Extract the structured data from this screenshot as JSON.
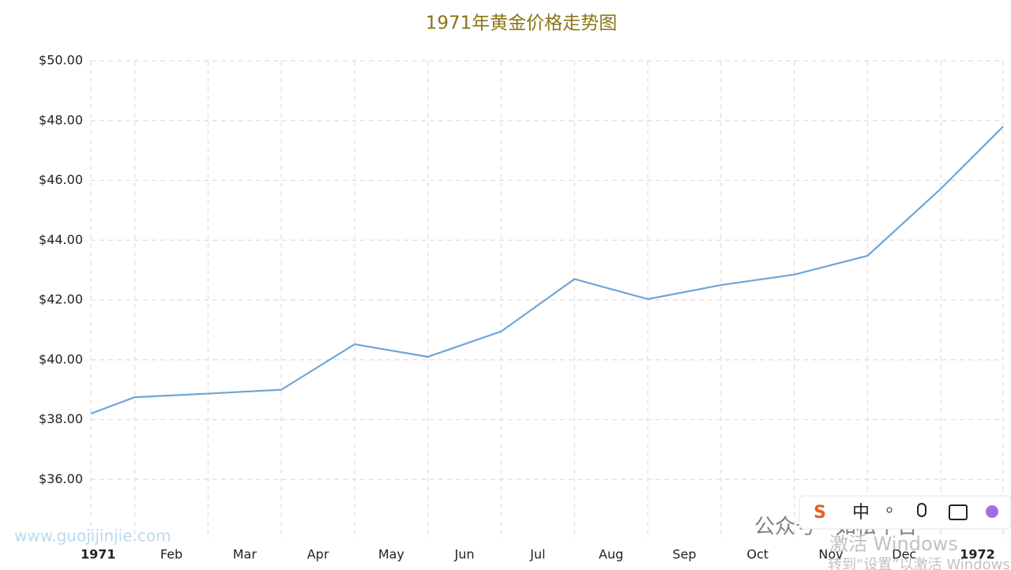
{
  "chart_data": {
    "type": "line",
    "title": "1971年黄金价格走势图",
    "x": [
      -0.1,
      0.5,
      1.5,
      2.5,
      3.5,
      4.5,
      5.5,
      6.5,
      7.5,
      8.5,
      9.5,
      10.5,
      11.5,
      12.35
    ],
    "series": [
      {
        "color": "#6fa6d6",
        "values": [
          38.2,
          38.75,
          38.87,
          39.0,
          40.52,
          40.1,
          40.95,
          42.7,
          42.03,
          42.5,
          42.85,
          43.48,
          45.72,
          47.8
        ]
      }
    ],
    "xlim": [
      -0.1,
      12.35
    ],
    "xticks": [
      {
        "value": 0,
        "label": "1971"
      },
      {
        "value": 1,
        "label": "Feb"
      },
      {
        "value": 2,
        "label": "Mar"
      },
      {
        "value": 3,
        "label": "Apr"
      },
      {
        "value": 4,
        "label": "May"
      },
      {
        "value": 5,
        "label": "Jun"
      },
      {
        "value": 6,
        "label": "Jul"
      },
      {
        "value": 7,
        "label": "Aug"
      },
      {
        "value": 8,
        "label": "Sep"
      },
      {
        "value": 9,
        "label": "Oct"
      },
      {
        "value": 10,
        "label": "Nov"
      },
      {
        "value": 11,
        "label": "Dec"
      },
      {
        "value": 12,
        "label": "1972"
      }
    ],
    "ylim": [
      34,
      50
    ],
    "yticks": [
      {
        "value": 36,
        "label": "$36.00"
      },
      {
        "value": 38,
        "label": "$38.00"
      },
      {
        "value": 40,
        "label": "$40.00"
      },
      {
        "value": 42,
        "label": "$42.00"
      },
      {
        "value": 44,
        "label": "$44.00"
      },
      {
        "value": 46,
        "label": "$46.00"
      },
      {
        "value": 48,
        "label": "$48.00"
      },
      {
        "value": 50,
        "label": "$50.00"
      }
    ],
    "grid": true
  },
  "overlay": {
    "site": "www.guojijinjie.com",
    "account": "公众号 · 如松平台",
    "activate": "激活 Windows",
    "activate_hint": "转到“设置”以激活 Windows",
    "ime": "中"
  }
}
